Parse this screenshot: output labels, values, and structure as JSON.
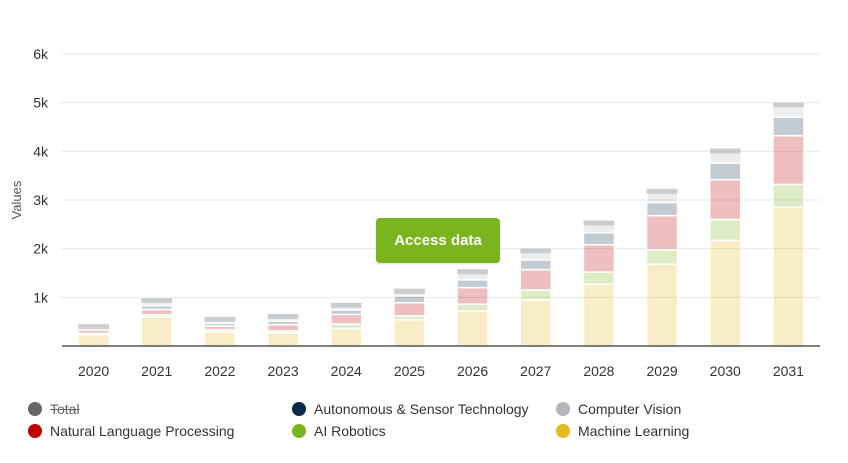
{
  "chart_data": {
    "type": "bar",
    "stacked": true,
    "categories": [
      "2020",
      "2021",
      "2022",
      "2023",
      "2024",
      "2025",
      "2026",
      "2027",
      "2028",
      "2029",
      "2030",
      "2031"
    ],
    "ylabel": "Values",
    "ylim": [
      0,
      6000
    ],
    "yticks": [
      "1k",
      "2k",
      "3k",
      "4k",
      "5k",
      "6k"
    ],
    "ytick_values": [
      1000,
      2000,
      3000,
      4000,
      5000,
      6000
    ],
    "grid": true,
    "legend_position": "bottom",
    "series": [
      {
        "name": "Machine Learning",
        "color": "#e8b820",
        "values": [
          230,
          600,
          290,
          270,
          360,
          540,
          720,
          950,
          1270,
          1680,
          2170,
          2850
        ]
      },
      {
        "name": "AI Robotics",
        "color": "#7ab51d",
        "values": [
          30,
          40,
          40,
          40,
          90,
          80,
          140,
          200,
          250,
          300,
          430,
          470
        ]
      },
      {
        "name": "Natural Language Processing",
        "color": "#c00000",
        "values": [
          70,
          110,
          80,
          130,
          200,
          270,
          340,
          420,
          560,
          700,
          820,
          1000
        ]
      },
      {
        "name": "Autonomous & Sensor Technology",
        "color": "#0b2a4a",
        "values": [
          40,
          80,
          60,
          70,
          90,
          140,
          160,
          200,
          250,
          270,
          340,
          380
        ]
      },
      {
        "name": "Computer Vision",
        "color": "#b3b7bd",
        "values": [
          80,
          160,
          130,
          150,
          150,
          150,
          220,
          240,
          250,
          280,
          300,
          310
        ]
      }
    ],
    "series_opacity": 0.25,
    "total": {
      "name": "Total",
      "color": "#666666",
      "hidden": true
    }
  },
  "button": {
    "access_data_label": "Access data"
  },
  "legend": [
    {
      "label": "Total",
      "color": "#666666",
      "hidden": true
    },
    {
      "label": "Autonomous & Sensor Technology",
      "color": "#0b2a4a",
      "hidden": false
    },
    {
      "label": "Computer Vision",
      "color": "#b3b7bd",
      "hidden": false
    },
    {
      "label": "Natural Language Processing",
      "color": "#c00000",
      "hidden": false
    },
    {
      "label": "AI Robotics",
      "color": "#7ab51d",
      "hidden": false
    },
    {
      "label": "Machine Learning",
      "color": "#e8b820",
      "hidden": false
    }
  ]
}
